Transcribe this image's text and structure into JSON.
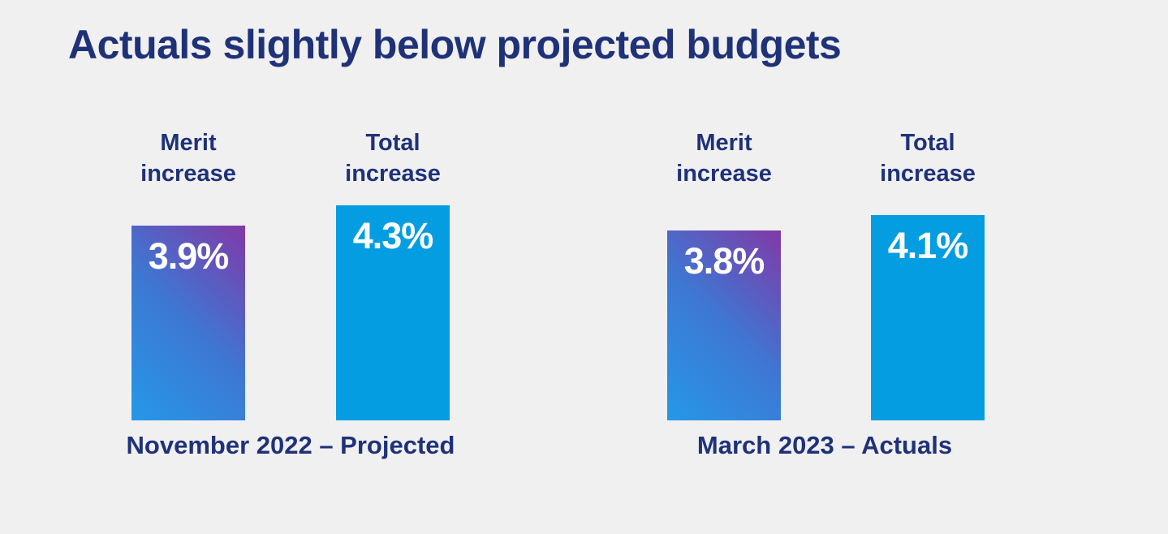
{
  "page": {
    "background": "#f0f0f1"
  },
  "title": "Actuals slightly below projected budgets",
  "colors": {
    "heading": "#1f3278",
    "bar_value_text": "#ffffff",
    "merit_gradient": [
      "#2598e7",
      "#3e77d3",
      "#8139a7"
    ],
    "total_fill": "#049de2"
  },
  "chart_data": {
    "type": "bar",
    "title": "Actuals slightly below projected budgets",
    "unit": "percent",
    "value_axis_visible": false,
    "grid": false,
    "legend": "none",
    "ylim": [
      0,
      4.3
    ],
    "groups": [
      {
        "label": "November 2022 – Projected",
        "bars": [
          {
            "category": "Merit increase",
            "value": 3.9,
            "display": "3.9%",
            "fill": "merit-gradient"
          },
          {
            "category": "Total increase",
            "value": 4.3,
            "display": "4.3%",
            "fill": "total-solid"
          }
        ]
      },
      {
        "label": "March 2023 – Actuals",
        "bars": [
          {
            "category": "Merit increase",
            "value": 3.8,
            "display": "3.8%",
            "fill": "merit-gradient"
          },
          {
            "category": "Total increase",
            "value": 4.1,
            "display": "4.1%",
            "fill": "total-solid"
          }
        ]
      }
    ]
  }
}
